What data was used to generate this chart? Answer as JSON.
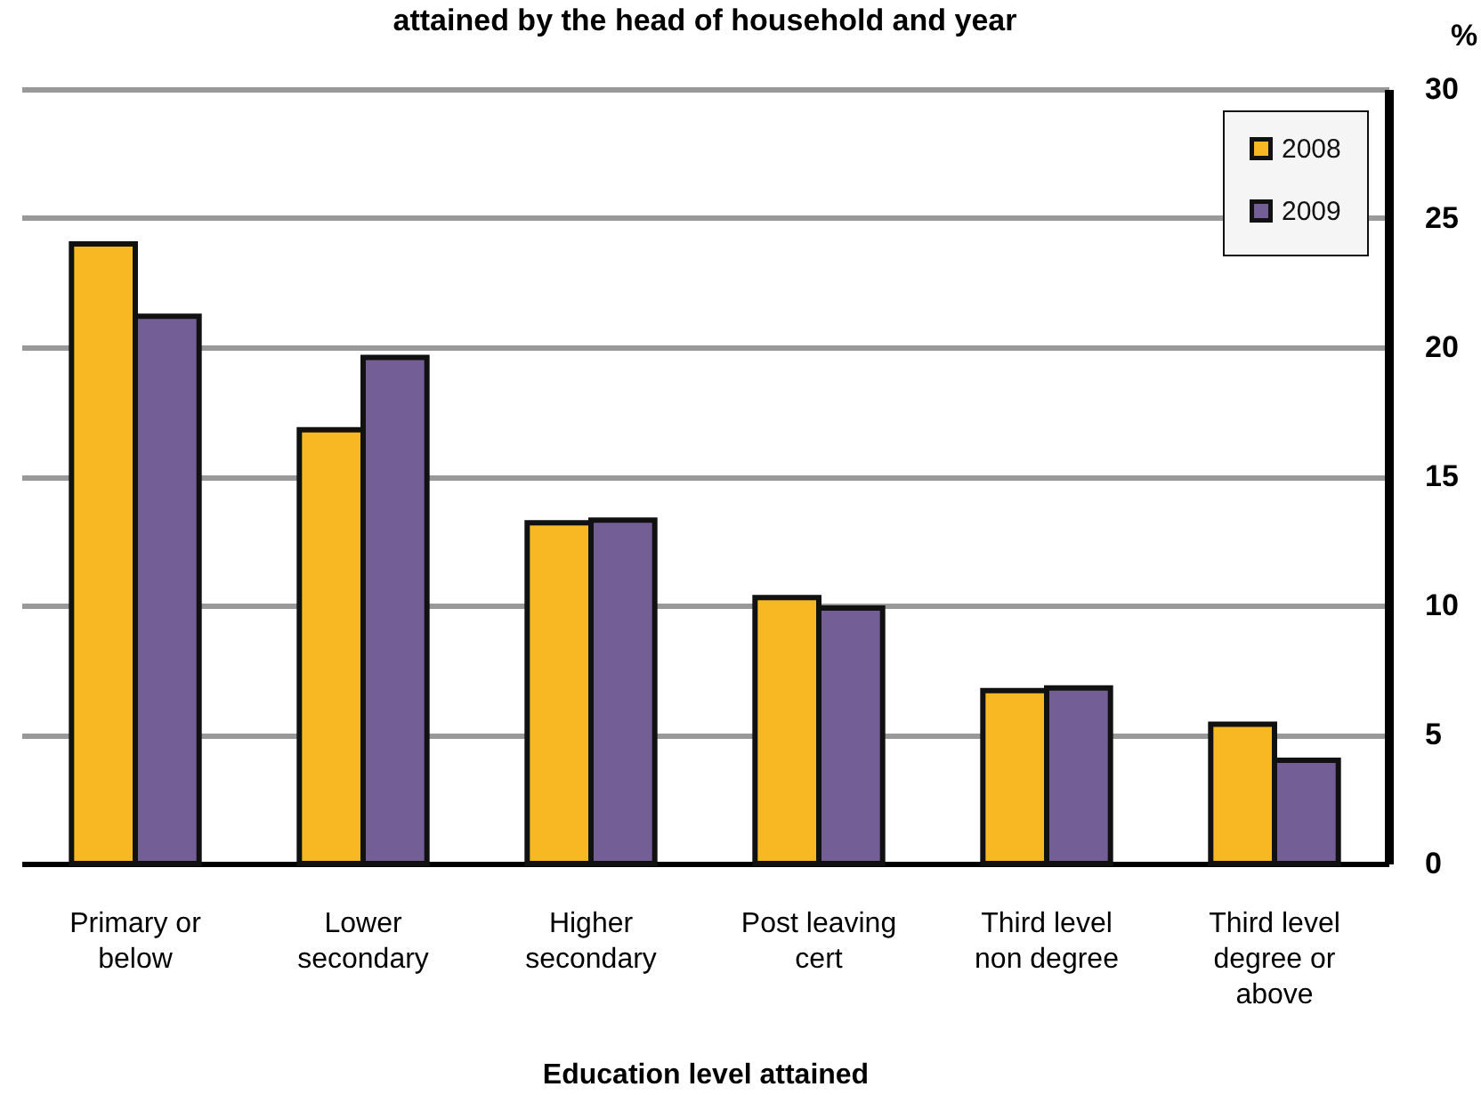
{
  "chart_data": {
    "type": "bar",
    "title": "attained by the head of household and year",
    "xlabel": "Education level attained",
    "ylabel": "%",
    "categories": [
      "Primary or below",
      "Lower secondary",
      "Higher secondary",
      "Post leaving cert",
      "Third level non degree",
      "Third level degree or above"
    ],
    "series": [
      {
        "name": "2008",
        "color": "#f8b823",
        "values": [
          24.0,
          16.8,
          13.2,
          10.3,
          6.7,
          5.4
        ]
      },
      {
        "name": "2009",
        "color": "#735f96",
        "values": [
          21.2,
          19.6,
          13.3,
          9.9,
          6.8,
          4.0
        ]
      }
    ],
    "ylim": [
      0,
      30
    ],
    "yticks": [
      0,
      5,
      10,
      15,
      20,
      25,
      30
    ],
    "grid": "y",
    "legend": "top right"
  }
}
